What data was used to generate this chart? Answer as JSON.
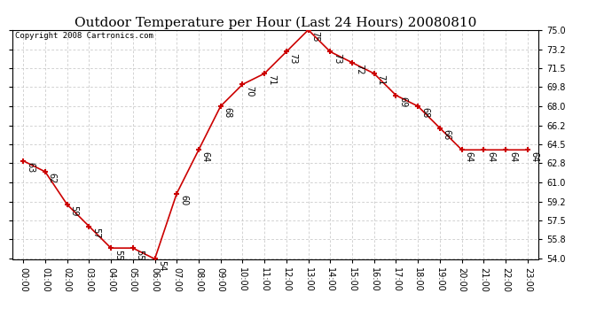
{
  "title": "Outdoor Temperature per Hour (Last 24 Hours) 20080810",
  "copyright": "Copyright 2008 Cartronics.com",
  "hours": [
    "00:00",
    "01:00",
    "02:00",
    "03:00",
    "04:00",
    "05:00",
    "06:00",
    "07:00",
    "08:00",
    "09:00",
    "10:00",
    "11:00",
    "12:00",
    "13:00",
    "14:00",
    "15:00",
    "16:00",
    "17:00",
    "18:00",
    "19:00",
    "20:00",
    "21:00",
    "22:00",
    "23:00"
  ],
  "temps": [
    63,
    62,
    59,
    57,
    55,
    55,
    54,
    60,
    64,
    68,
    70,
    71,
    73,
    75,
    73,
    72,
    71,
    69,
    68,
    66,
    64,
    64,
    64,
    64
  ],
  "line_color": "#cc0000",
  "marker_color": "#cc0000",
  "bg_color": "#ffffff",
  "grid_color": "#c0c0c0",
  "ylim_min": 54.0,
  "ylim_max": 75.0,
  "yticks": [
    54.0,
    55.8,
    57.5,
    59.2,
    61.0,
    62.8,
    64.5,
    66.2,
    68.0,
    69.8,
    71.5,
    73.2,
    75.0
  ],
  "title_fontsize": 11,
  "copyright_fontsize": 6.5,
  "tick_fontsize": 7,
  "annot_fontsize": 7
}
